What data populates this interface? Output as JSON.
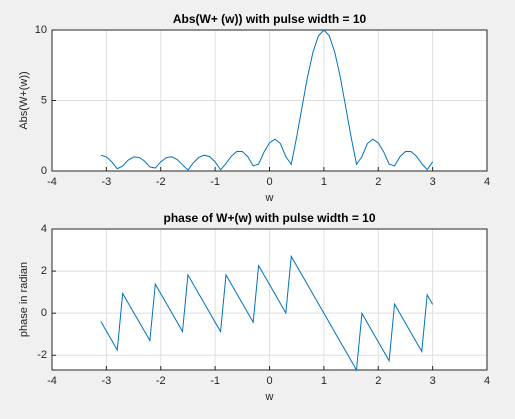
{
  "chart_data": [
    {
      "type": "line",
      "title": "Abs(W+ (w)) with pulse width = 10",
      "xlabel": "w",
      "ylabel": "Abs(W+(w))",
      "x": [
        -3.1,
        -3.0,
        -2.9,
        -2.8,
        -2.7,
        -2.6,
        -2.5,
        -2.4,
        -2.3,
        -2.2,
        -2.1,
        -2.0,
        -1.9,
        -1.8,
        -1.7,
        -1.6,
        -1.5,
        -1.4,
        -1.3,
        -1.2,
        -1.1,
        -1.0,
        -0.9,
        -0.8,
        -0.7,
        -0.6,
        -0.5,
        -0.4,
        -0.3,
        -0.2,
        -0.1,
        0,
        0.1,
        0.2,
        0.3,
        0.4,
        0.5,
        0.6,
        0.7,
        0.8,
        0.9,
        1.0,
        1.1,
        1.2,
        1.3,
        1.4,
        1.5,
        1.6,
        1.7,
        1.8,
        1.9,
        2.0,
        2.1,
        2.2,
        2.3,
        2.4,
        2.5,
        2.6,
        2.7,
        2.8,
        2.9,
        3.0
      ],
      "values": [
        1.12,
        1.0,
        0.65,
        0.16,
        0.36,
        0.77,
        0.99,
        0.97,
        0.71,
        0.29,
        0.21,
        0.65,
        0.94,
        1.01,
        0.82,
        0.44,
        0.07,
        0.58,
        0.96,
        1.12,
        1.02,
        0.65,
        0.09,
        0.53,
        1.06,
        1.38,
        1.38,
        1.02,
        0.36,
        0.49,
        1.35,
        2.0,
        2.25,
        1.95,
        1.02,
        0.48,
        2.42,
        4.57,
        6.69,
        8.43,
        9.59,
        10,
        9.59,
        8.43,
        6.69,
        4.57,
        2.42,
        0.48,
        1.02,
        1.95,
        2.25,
        2.0,
        1.35,
        0.49,
        0.36,
        1.02,
        1.38,
        1.38,
        1.06,
        0.53,
        0.09,
        0.65
      ],
      "color": "#0072bd",
      "xlim": [
        -4,
        4
      ],
      "ylim": [
        0,
        10
      ],
      "xticks": [
        -4,
        -3,
        -2,
        -1,
        0,
        1,
        2,
        3,
        4
      ],
      "yticks": [
        0,
        5,
        10
      ],
      "grid": true
    },
    {
      "type": "line",
      "title": "phase of W+(w) with pulse width = 10",
      "xlabel": "w",
      "ylabel": "phase in radian",
      "x": [
        -3.1,
        -3.0,
        -2.9,
        -2.8,
        -2.7,
        -2.6,
        -2.5,
        -2.4,
        -2.3,
        -2.2,
        -2.1,
        -2.0,
        -1.9,
        -1.8,
        -1.7,
        -1.6,
        -1.5,
        -1.4,
        -1.3,
        -1.2,
        -1.1,
        -1.0,
        -0.9,
        -0.8,
        -0.7,
        -0.6,
        -0.5,
        -0.4,
        -0.3,
        -0.2,
        -0.1,
        0,
        0.1,
        0.2,
        0.3,
        0.4,
        0.5,
        0.6,
        0.7,
        0.8,
        0.9,
        1.0,
        1.1,
        1.2,
        1.3,
        1.4,
        1.5,
        1.6,
        1.7,
        1.8,
        1.9,
        2.0,
        2.1,
        2.2,
        2.3,
        2.4,
        2.5,
        2.6,
        2.7,
        2.8,
        2.9,
        3.0
      ],
      "values": [
        -0.4,
        -0.85,
        -1.3,
        -1.75,
        0.94,
        0.49,
        0.04,
        -0.4,
        -0.85,
        -1.3,
        1.38,
        0.93,
        0.48,
        0.03,
        -0.42,
        -0.87,
        1.82,
        1.37,
        0.92,
        0.47,
        0.02,
        -0.43,
        -0.87,
        1.82,
        1.37,
        0.92,
        0.47,
        0.02,
        -0.43,
        2.26,
        1.81,
        1.36,
        0.91,
        0.46,
        0.01,
        2.7,
        2.25,
        1.8,
        1.35,
        0.9,
        0.45,
        0,
        -0.45,
        -0.9,
        -1.35,
        -1.8,
        -2.25,
        -2.7,
        -0.01,
        -0.46,
        -0.91,
        -1.36,
        -1.81,
        -2.26,
        0.43,
        -0.02,
        -0.47,
        -0.92,
        -1.37,
        -1.82,
        0.87,
        0.42
      ],
      "color": "#0072bd",
      "xlim": [
        -4,
        4
      ],
      "ylim": [
        -2.7,
        4
      ],
      "xticks": [
        -4,
        -3,
        -2,
        -1,
        0,
        1,
        2,
        3,
        4
      ],
      "yticks": [
        -2,
        0,
        2,
        4
      ],
      "grid": true
    }
  ]
}
